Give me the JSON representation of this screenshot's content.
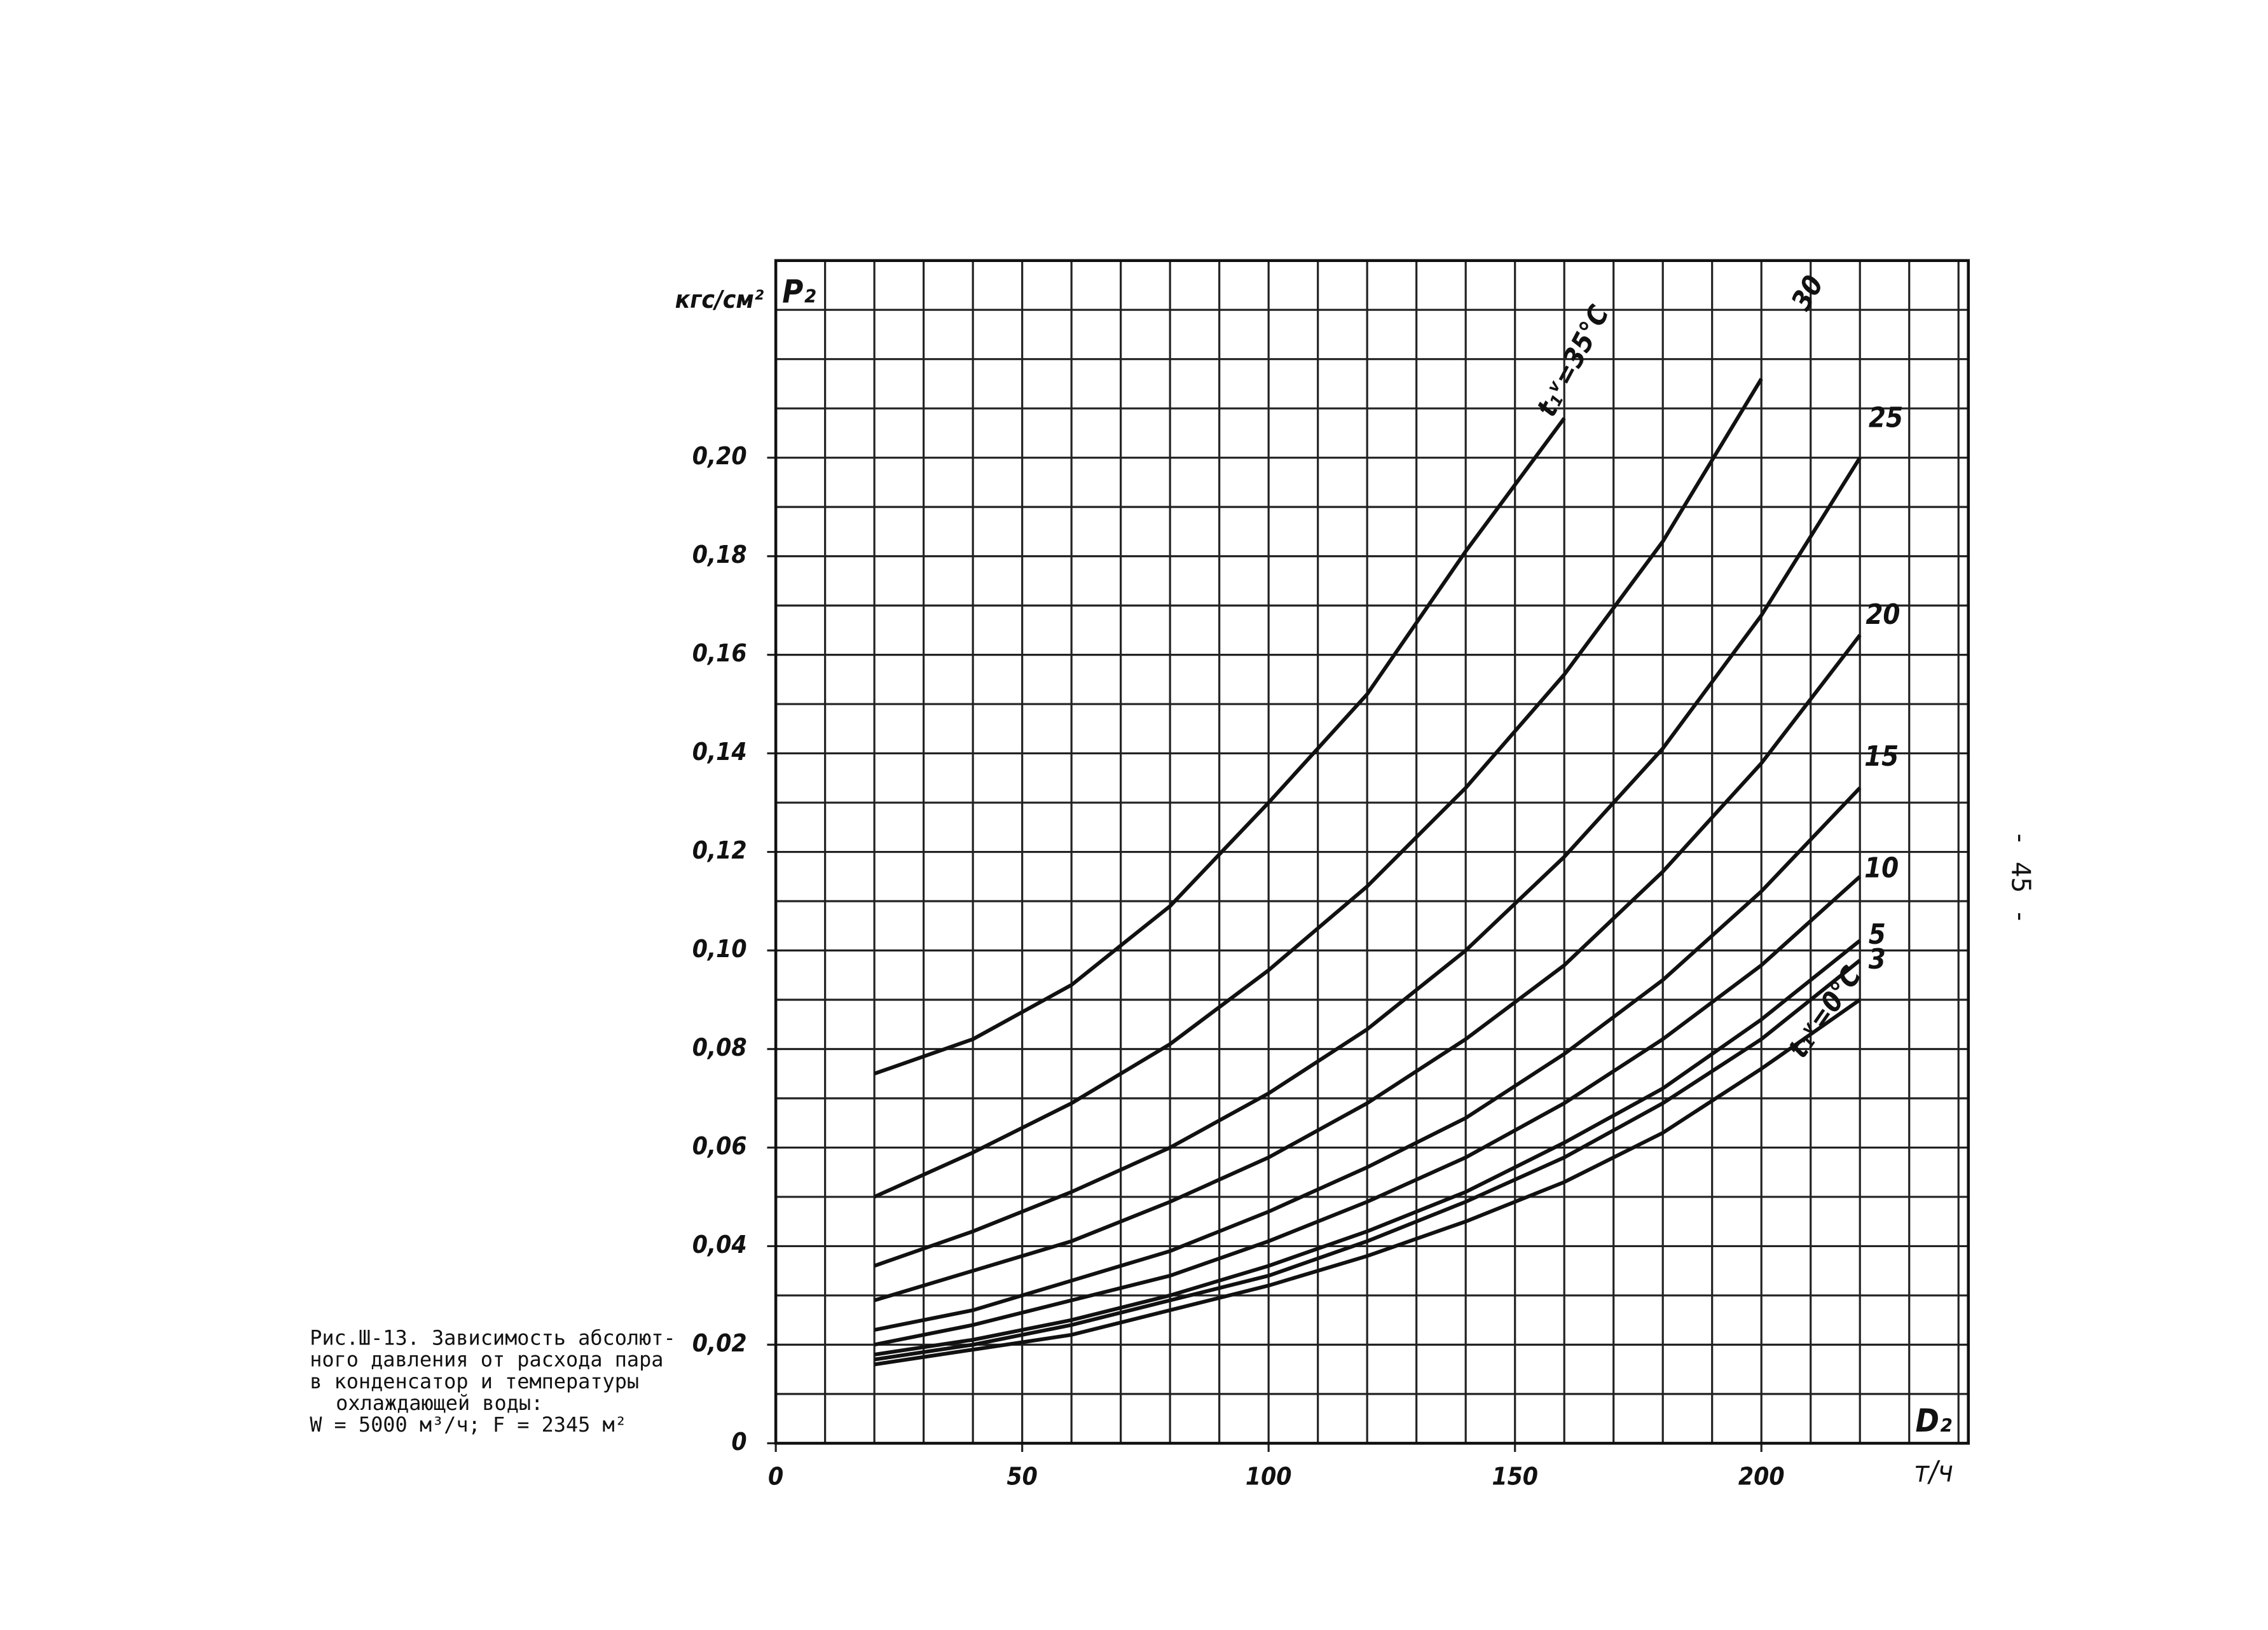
{
  "chart_data": {
    "type": "line",
    "y_unit": "кгс/см²",
    "y_label": "P₂",
    "x_label": "D₂",
    "x_unit": "т/ч",
    "x": [
      20,
      40,
      60,
      80,
      100,
      120,
      140,
      160,
      180,
      200,
      220
    ],
    "series": [
      {
        "name": "t₁ᵛ=35°C",
        "color": "#111",
        "values": [
          0.075,
          0.082,
          0.093,
          0.109,
          0.13,
          0.152,
          0.181,
          0.208,
          null,
          null,
          null
        ]
      },
      {
        "name": "30",
        "color": "#111",
        "values": [
          0.05,
          0.059,
          0.069,
          0.081,
          0.096,
          0.113,
          0.133,
          0.156,
          0.183,
          0.216,
          null
        ]
      },
      {
        "name": "25",
        "color": "#111",
        "values": [
          0.036,
          0.043,
          0.051,
          0.06,
          0.071,
          0.084,
          0.1,
          0.119,
          0.141,
          0.168,
          0.2
        ]
      },
      {
        "name": "20",
        "color": "#111",
        "values": [
          0.029,
          0.035,
          0.041,
          0.049,
          0.058,
          0.069,
          0.082,
          0.097,
          0.116,
          0.138,
          0.164
        ]
      },
      {
        "name": "15",
        "color": "#111",
        "values": [
          0.023,
          0.027,
          0.033,
          0.039,
          0.047,
          0.056,
          0.066,
          0.079,
          0.094,
          0.112,
          0.133
        ]
      },
      {
        "name": "10",
        "color": "#111",
        "values": [
          0.02,
          0.024,
          0.029,
          0.034,
          0.041,
          0.049,
          0.058,
          0.069,
          0.082,
          0.097,
          0.115
        ]
      },
      {
        "name": "5",
        "color": "#111",
        "values": [
          0.018,
          0.021,
          0.025,
          0.03,
          0.036,
          0.043,
          0.051,
          0.061,
          0.072,
          0.086,
          0.102
        ]
      },
      {
        "name": "3",
        "color": "#111",
        "values": [
          0.017,
          0.02,
          0.024,
          0.029,
          0.034,
          0.041,
          0.049,
          0.058,
          0.069,
          0.082,
          0.098
        ]
      },
      {
        "name": "t₁ᵛ=0°C",
        "color": "#111",
        "values": [
          0.016,
          0.019,
          0.022,
          0.027,
          0.032,
          0.038,
          0.045,
          0.053,
          0.063,
          0.076,
          0.09
        ]
      }
    ],
    "xlim": [
      0,
      242
    ],
    "ylim": [
      0,
      0.24
    ],
    "xticks": [
      0,
      50,
      100,
      150,
      200
    ],
    "xminorticks": [
      10,
      20,
      30,
      40,
      60,
      70,
      80,
      90,
      110,
      120,
      130,
      140,
      160,
      170,
      180,
      190,
      210,
      220,
      230,
      240
    ],
    "yticks": [
      0,
      {
        "value": 0.02,
        "label": "0,02"
      },
      {
        "value": 0.04,
        "label": "0,04"
      },
      {
        "value": 0.06,
        "label": "0,06"
      },
      {
        "value": 0.08,
        "label": "0,08"
      },
      {
        "value": 0.1,
        "label": "0,10"
      },
      {
        "value": 0.12,
        "label": "0,12"
      },
      {
        "value": 0.14,
        "label": "0,14"
      },
      {
        "value": 0.16,
        "label": "0,16"
      },
      {
        "value": 0.18,
        "label": "0,18"
      },
      {
        "value": 0.2,
        "label": "0,20"
      }
    ],
    "yminorticks": [
      0.01,
      0.03,
      0.05,
      0.07,
      0.09,
      0.11,
      0.13,
      0.15,
      0.17,
      0.19,
      0.21,
      0.22,
      0.23,
      0.24
    ],
    "grid": true,
    "caption": [
      "Рис.Ш-13. Зависимость абсолют-",
      "ного давления от расхода пара",
      "в конденсатор и температуры",
      "охлаждающей воды:",
      "W = 5000 м³/ч; F = 2345 м²"
    ],
    "page_number": "- 45 -"
  }
}
